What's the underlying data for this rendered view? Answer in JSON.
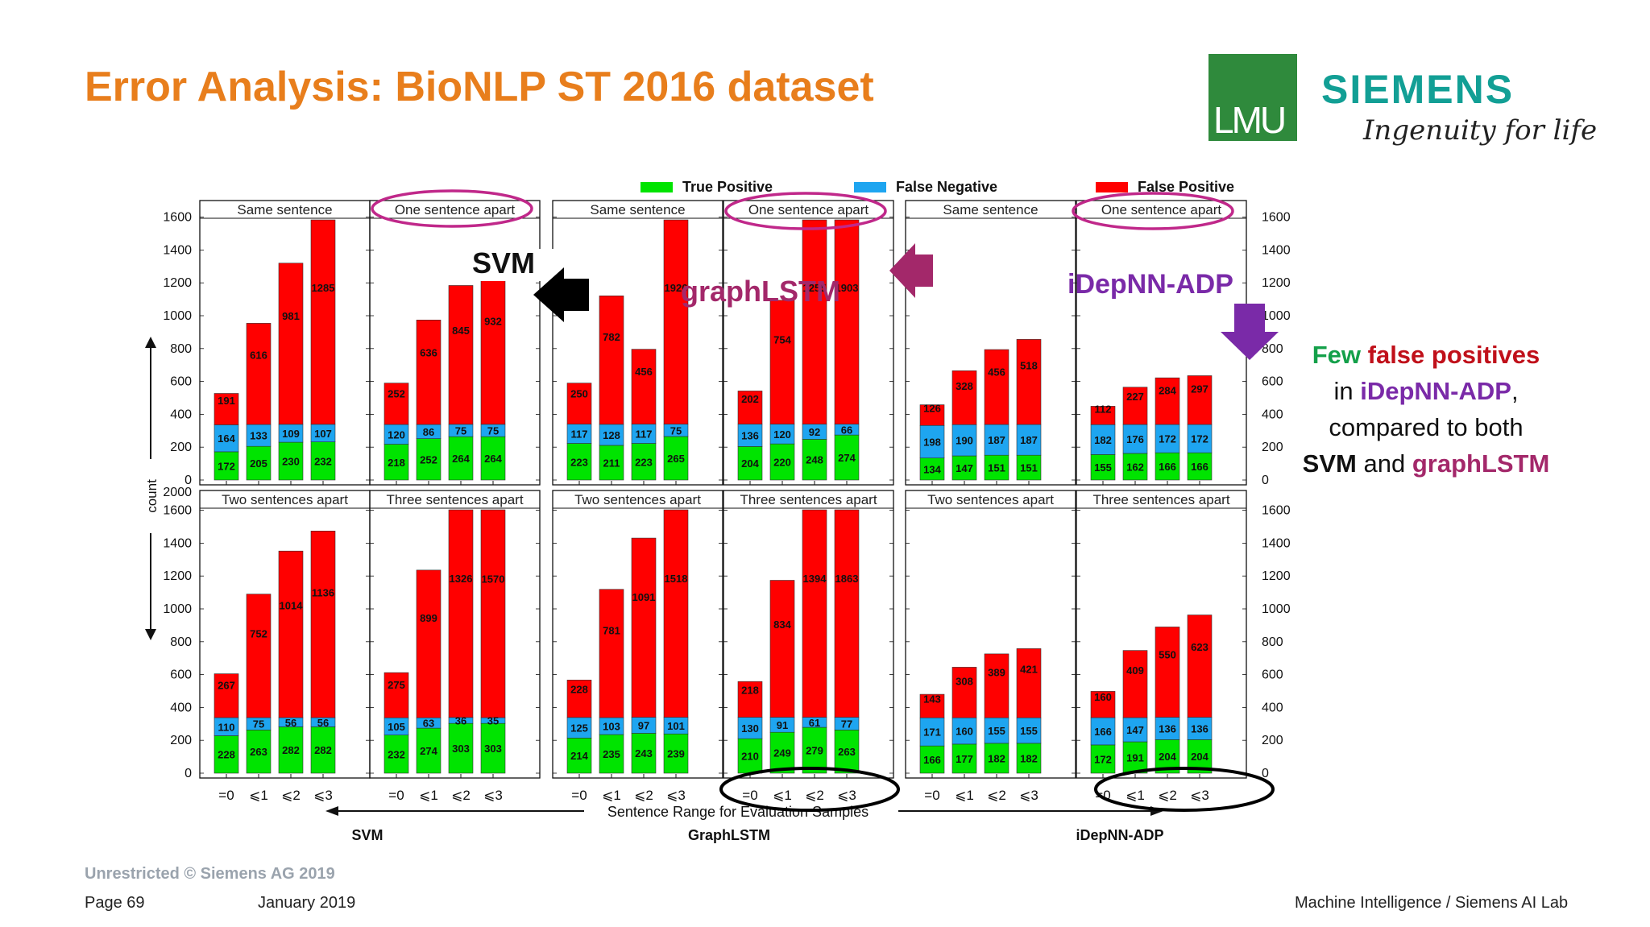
{
  "slide": {
    "title": "Error Analysis: BioNLP ST 2016 dataset",
    "lmu_logo_text": "LMU",
    "siemens_logo_text": "SIEMENS",
    "siemens_tagline": "Ingenuity for life",
    "copyright": "Unrestricted © Siemens AG 2019",
    "page": "Page 69",
    "date": "January 2019",
    "department": "Machine Intelligence / Siemens AI Lab"
  },
  "note": {
    "few": "Few",
    "false_positives": "false positives",
    "in": "in",
    "model": "iDepNN-ADP",
    "comma": ",",
    "compared": "compared to both",
    "svm": "SVM",
    "and": "and",
    "graphlstm": "graphLSTM"
  },
  "callouts": {
    "svm": "SVM",
    "graphlstm": "graphLSTM",
    "idepnn": "iDepNN-ADP"
  },
  "colors": {
    "true_positive": "#00e400",
    "false_negative": "#1ea5f0",
    "false_positive": "#ff0000",
    "title": "#e87e1c",
    "svm_arrow": "#000000",
    "graphlstm_arrow": "#a3286a",
    "idepnn_arrow": "#7a2aa8",
    "ellipse_pink": "#c0288a"
  },
  "chart_data": {
    "type": "bar",
    "stacked": true,
    "ylabel": "count",
    "xlabel": "Sentence Range for Evaluation Samples",
    "categories": [
      "=0",
      "⩽1",
      "⩽2",
      "⩽3"
    ],
    "legend": [
      "True Positive",
      "False Negative",
      "False Positive"
    ],
    "legend_position": "top",
    "top_yticks": [
      "0",
      "200",
      "400",
      "600",
      "800",
      "1000",
      "1200",
      "1400",
      "1600"
    ],
    "bottom_yticks": [
      "0",
      "200",
      "400",
      "600",
      "800",
      "1000",
      "1200",
      "1400",
      "1600",
      "2000"
    ],
    "top_ylim": [
      0,
      1650
    ],
    "bottom_ylim": [
      0,
      1650
    ],
    "models": [
      "SVM",
      "GraphLSTM",
      "iDepNN-ADP"
    ],
    "panels": [
      {
        "row": 0,
        "model": "SVM",
        "title": "Same sentence",
        "tp": [
          172,
          205,
          230,
          232
        ],
        "fn": [
          164,
          133,
          109,
          107
        ],
        "fp": [
          191,
          616,
          981,
          1285
        ]
      },
      {
        "row": 0,
        "model": "SVM",
        "title": "One sentence apart",
        "tp": [
          218,
          252,
          264,
          264
        ],
        "fn": [
          120,
          86,
          75,
          75
        ],
        "fp": [
          252,
          636,
          845,
          932
        ]
      },
      {
        "row": 0,
        "model": "GraphLSTM",
        "title": "Same sentence",
        "tp": [
          223,
          211,
          223,
          265
        ],
        "fn": [
          117,
          128,
          117,
          75
        ],
        "fp": [
          250,
          782,
          456,
          1926
        ]
      },
      {
        "row": 0,
        "model": "GraphLSTM",
        "title": "One sentence apart",
        "tp": [
          204,
          220,
          248,
          274
        ],
        "fn": [
          136,
          120,
          92,
          66
        ],
        "fp": [
          202,
          754,
          1255,
          1903
        ]
      },
      {
        "row": 0,
        "model": "iDepNN-ADP",
        "title": "Same sentence",
        "tp": [
          134,
          147,
          151,
          151
        ],
        "fn": [
          198,
          190,
          187,
          187
        ],
        "fp": [
          126,
          328,
          456,
          518
        ]
      },
      {
        "row": 0,
        "model": "iDepNN-ADP",
        "title": "One sentence apart",
        "tp": [
          155,
          162,
          166,
          166
        ],
        "fn": [
          182,
          176,
          172,
          172
        ],
        "fp": [
          112,
          227,
          284,
          297
        ]
      },
      {
        "row": 1,
        "model": "SVM",
        "title": "Two sentences apart",
        "tp": [
          228,
          263,
          282,
          282
        ],
        "fn": [
          110,
          75,
          56,
          56
        ],
        "fp": [
          267,
          752,
          1014,
          1136
        ]
      },
      {
        "row": 1,
        "model": "SVM",
        "title": "Three sentences apart",
        "tp": [
          232,
          274,
          303,
          303
        ],
        "fn": [
          105,
          63,
          36,
          35
        ],
        "fp": [
          275,
          899,
          1326,
          1570
        ]
      },
      {
        "row": 1,
        "model": "GraphLSTM",
        "title": "Two sentences apart",
        "tp": [
          214,
          235,
          243,
          239
        ],
        "fn": [
          125,
          103,
          97,
          101
        ],
        "fp": [
          228,
          781,
          1091,
          1518
        ]
      },
      {
        "row": 1,
        "model": "GraphLSTM",
        "title": "Three sentences apart",
        "tp": [
          210,
          249,
          279,
          263
        ],
        "fn": [
          130,
          91,
          61,
          77
        ],
        "fp": [
          218,
          834,
          1394,
          1863
        ]
      },
      {
        "row": 1,
        "model": "iDepNN-ADP",
        "title": "Two sentences apart",
        "tp": [
          166,
          177,
          182,
          182
        ],
        "fn": [
          171,
          160,
          155,
          155
        ],
        "fp": [
          143,
          308,
          389,
          421
        ]
      },
      {
        "row": 1,
        "model": "iDepNN-ADP",
        "title": "Three sentences apart",
        "tp": [
          172,
          191,
          204,
          204
        ],
        "fn": [
          166,
          147,
          136,
          136
        ],
        "fp": [
          160,
          409,
          550,
          623
        ]
      }
    ]
  }
}
